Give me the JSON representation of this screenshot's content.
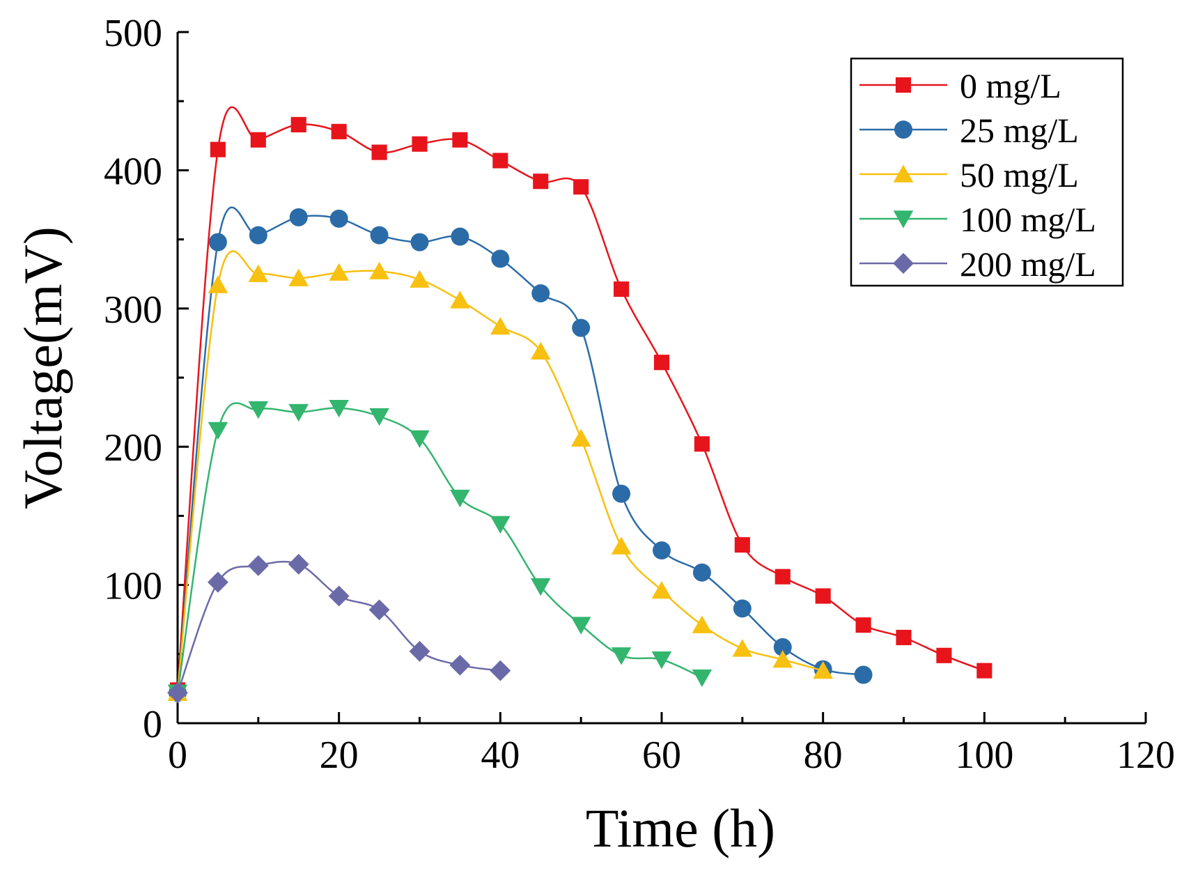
{
  "chart_data": {
    "type": "line",
    "title": "",
    "xlabel": "Time (h)",
    "ylabel": "Voltage(mV)",
    "xlim": [
      0,
      120
    ],
    "ylim": [
      0,
      500
    ],
    "x_ticks": [
      0,
      20,
      40,
      60,
      80,
      100,
      120
    ],
    "y_ticks": [
      0,
      100,
      200,
      300,
      400,
      500
    ],
    "grid": false,
    "legend_position": "top-right",
    "series": [
      {
        "name": "0 mg/L",
        "color": "#e8141c",
        "marker": "square",
        "x": [
          0,
          5,
          10,
          15,
          20,
          25,
          30,
          35,
          40,
          45,
          50,
          55,
          60,
          65,
          70,
          75,
          80,
          85,
          90,
          95,
          100
        ],
        "y": [
          24,
          415,
          422,
          433,
          428,
          413,
          419,
          422,
          407,
          392,
          388,
          314,
          261,
          202,
          129,
          106,
          92,
          71,
          62,
          49,
          38
        ]
      },
      {
        "name": "25 mg/L",
        "color": "#2b6ca8",
        "marker": "circle",
        "x": [
          0,
          5,
          10,
          15,
          20,
          25,
          30,
          35,
          40,
          45,
          50,
          55,
          60,
          65,
          70,
          75,
          80,
          85
        ],
        "y": [
          22,
          348,
          353,
          366,
          365,
          353,
          348,
          352,
          336,
          311,
          286,
          166,
          125,
          109,
          83,
          55,
          39,
          35
        ]
      },
      {
        "name": "50 mg/L",
        "color": "#f8c010",
        "marker": "triangle-up",
        "x": [
          0,
          5,
          10,
          15,
          20,
          25,
          30,
          35,
          40,
          45,
          50,
          55,
          60,
          65,
          70,
          75,
          80
        ],
        "y": [
          22,
          317,
          325,
          322,
          326,
          327,
          321,
          306,
          287,
          269,
          206,
          128,
          96,
          71,
          54,
          46,
          38
        ]
      },
      {
        "name": "100 mg/L",
        "color": "#33b56e",
        "marker": "triangle-down",
        "x": [
          0,
          5,
          10,
          15,
          20,
          25,
          30,
          35,
          40,
          45,
          50,
          55,
          60,
          65
        ],
        "y": [
          22,
          212,
          227,
          225,
          228,
          222,
          206,
          163,
          144,
          99,
          71,
          49,
          46,
          33
        ]
      },
      {
        "name": "200 mg/L",
        "color": "#6b6aa8",
        "marker": "diamond",
        "x": [
          0,
          5,
          10,
          15,
          20,
          25,
          30,
          35,
          40
        ],
        "y": [
          22,
          102,
          114,
          115,
          92,
          82,
          52,
          42,
          38
        ]
      }
    ]
  }
}
